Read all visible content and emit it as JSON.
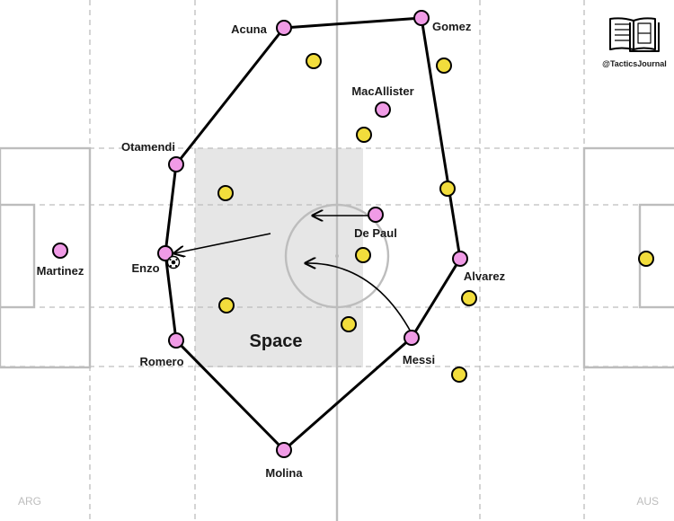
{
  "colors": {
    "home_player": "#f09be6",
    "away_player": "#f2dd3c",
    "space_fill": "#e6e6e6",
    "pitch_line": "#bdbdbd",
    "shape_line": "#000000"
  },
  "brand": {
    "icon": "open-book-pitch-icon",
    "handle": "@TacticsJournal"
  },
  "teams": {
    "home": "ARG",
    "away": "AUS"
  },
  "space_label": "Space",
  "home_players": [
    {
      "id": "acuna",
      "name": "Acuna"
    },
    {
      "id": "gomez",
      "name": "Gomez"
    },
    {
      "id": "macallister",
      "name": "MacAllister"
    },
    {
      "id": "otamendi",
      "name": "Otamendi"
    },
    {
      "id": "depaul",
      "name": "De Paul"
    },
    {
      "id": "enzo",
      "name": "Enzo",
      "has_ball": true
    },
    {
      "id": "martinez",
      "name": "Martinez"
    },
    {
      "id": "alvarez",
      "name": "Alvarez"
    },
    {
      "id": "romero",
      "name": "Romero"
    },
    {
      "id": "messi",
      "name": "Messi"
    },
    {
      "id": "molina",
      "name": "Molina"
    }
  ],
  "shape_order": [
    "acuna",
    "gomez",
    "alvarez",
    "messi",
    "molina",
    "romero",
    "enzo",
    "otamendi"
  ],
  "away_players_count": 11,
  "movements": [
    {
      "from": "depaul",
      "type": "straight"
    },
    {
      "from": "messi",
      "type": "curved"
    },
    {
      "from": "space",
      "to": "enzo",
      "type": "straight"
    }
  ]
}
